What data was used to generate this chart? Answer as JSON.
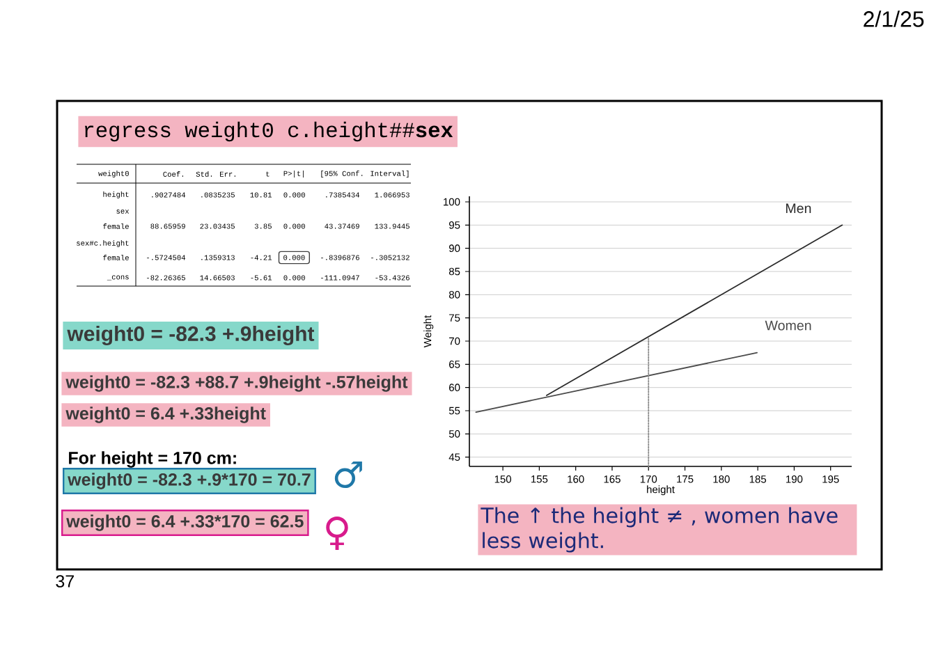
{
  "chart_data": {
    "type": "line",
    "title": "regress weight0 c.height##**sex**",
    "xlabel": "height",
    "ylabel": "Weight",
    "series": [
      {
        "name": "Men",
        "color": "#2b2b2b",
        "x": [
          156,
          196.6
        ],
        "values": [
          58.3,
          95
        ]
      },
      {
        "name": "Women",
        "color": "#4a4a4a",
        "x": [
          146.3,
          184.9
        ],
        "values": [
          54.7,
          67.5
        ]
      },
      {
        "color": "#8a8a8a",
        "x": [
          170,
          170
        ],
        "values": [
          43,
          70.7
        ],
        "line_style": "dotted"
      }
    ],
    "xlim": [
      145.4,
      197.9
    ],
    "xticks": [
      150,
      155,
      160,
      165,
      170,
      175,
      180,
      185,
      190,
      195
    ],
    "ylim": [
      43,
      101.2
    ],
    "yticks": [
      45,
      50,
      55,
      60,
      65,
      70,
      75,
      80,
      85,
      90,
      95,
      100
    ],
    "grid": "y",
    "annotations": [
      "weight0",
      "Coef.",
      "Std. Err.",
      "t",
      "P>|t|",
      "[95% Conf. Interval]",
      "height",
      ".9027484",
      ".0835235",
      "10.81",
      "0.000",
      ".7385434",
      "1.066953",
      "sex",
      "female",
      "88.65959",
      "23.03435",
      "3.85",
      "0.000",
      "43.37469",
      "133.9445",
      "sex#c.height",
      "female",
      "-.5724504",
      ".1359313",
      "-4.21",
      "0.000",
      "-.8396876",
      "-.3052132",
      "_cons",
      "-82.26365",
      "14.66503",
      "-5.61",
      "0.000",
      "-111.0947",
      "-53.4326",
      "weight0 = -82.3 +.9height",
      "weight0 = -82.3 +88.7 +.9height -.57height",
      "weight0 = 6.4 +.33height",
      "For height = 170 cm:",
      "weight0 = -82.3 +.9*170 = 70.7",
      "♂",
      "weight0 = 6.4 +.33*170 = 62.5",
      "♀",
      "The ↑ the height ≠ , women have less weight.",
      "2/1/25",
      "37"
    ]
  }
}
